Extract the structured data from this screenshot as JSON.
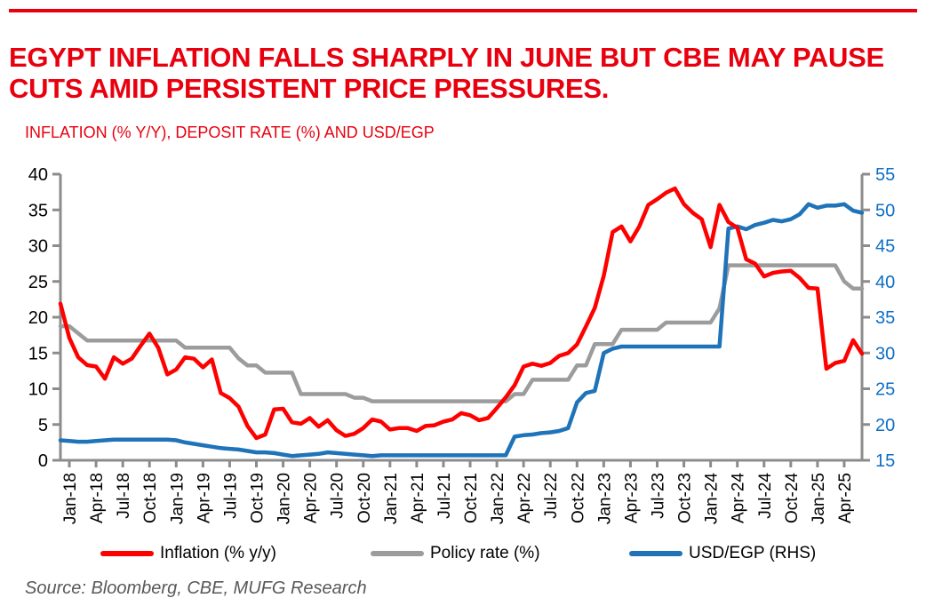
{
  "header": {
    "title_lines": [
      "EGYPT INFLATION FALLS SHARPLY IN JUNE BUT CBE MAY PAUSE",
      "CUTS AMID PERSISTENT PRICE PRESSURES."
    ],
    "subtitle": "INFLATION (% Y/Y), DEPOSIT RATE (%) AND USD/EGP"
  },
  "source": "Source: Bloomberg, CBE, MUFG Research",
  "colors": {
    "header_red": "#E9000F",
    "inflation_line": "#FE0000",
    "policy_line": "#9C9C9C",
    "usd_line": "#1E73B9",
    "axis": "#8C8C8C",
    "left_axis_labels": "#000000",
    "x_axis_labels": "#000000",
    "right_axis_labels": "#0C6EC5",
    "source_text": "#595959"
  },
  "legend": [
    {
      "key": "inflation",
      "label": "Inflation (% y/y)",
      "color": "#FE0000"
    },
    {
      "key": "policy-rate",
      "label": "Policy rate (%)",
      "color": "#9C9C9C"
    },
    {
      "key": "usd-egp",
      "label": "USD/EGP (RHS)",
      "color": "#1E73B9"
    }
  ],
  "chart_data": {
    "type": "line",
    "title": "EGYPT INFLATION FALLS SHARPLY IN JUNE BUT CBE MAY PAUSE CUTS AMID PERSISTENT PRICE PRESSURES.",
    "subtitle": "INFLATION (% Y/Y), DEPOSIT RATE (%) AND USD/EGP",
    "grid": false,
    "legend_position": "bottom",
    "x": [
      "Dec-17",
      "Jan-18",
      "Feb-18",
      "Mar-18",
      "Apr-18",
      "May-18",
      "Jun-18",
      "Jul-18",
      "Aug-18",
      "Sep-18",
      "Oct-18",
      "Nov-18",
      "Dec-18",
      "Jan-19",
      "Feb-19",
      "Mar-19",
      "Apr-19",
      "May-19",
      "Jun-19",
      "Jul-19",
      "Aug-19",
      "Sep-19",
      "Oct-19",
      "Nov-19",
      "Dec-19",
      "Jan-20",
      "Feb-20",
      "Mar-20",
      "Apr-20",
      "May-20",
      "Jun-20",
      "Jul-20",
      "Aug-20",
      "Sep-20",
      "Oct-20",
      "Nov-20",
      "Dec-20",
      "Jan-21",
      "Feb-21",
      "Mar-21",
      "Apr-21",
      "May-21",
      "Jun-21",
      "Jul-21",
      "Aug-21",
      "Sep-21",
      "Oct-21",
      "Nov-21",
      "Dec-21",
      "Jan-22",
      "Feb-22",
      "Mar-22",
      "Apr-22",
      "May-22",
      "Jun-22",
      "Jul-22",
      "Aug-22",
      "Sep-22",
      "Oct-22",
      "Nov-22",
      "Dec-22",
      "Jan-23",
      "Feb-23",
      "Mar-23",
      "Apr-23",
      "May-23",
      "Jun-23",
      "Jul-23",
      "Aug-23",
      "Sep-23",
      "Oct-23",
      "Nov-23",
      "Dec-23",
      "Jan-24",
      "Feb-24",
      "Mar-24",
      "Apr-24",
      "May-24",
      "Jun-24",
      "Jul-24",
      "Aug-24",
      "Sep-24",
      "Oct-24",
      "Nov-24",
      "Dec-24",
      "Jan-25",
      "Feb-25",
      "Mar-25",
      "Apr-25",
      "May-25",
      "Jun-25"
    ],
    "x_tick_labels": [
      "Jan-18",
      "Apr-18",
      "Jul-18",
      "Oct-18",
      "Jan-19",
      "Apr-19",
      "Jul-19",
      "Oct-19",
      "Jan-20",
      "Apr-20",
      "Jul-20",
      "Oct-20",
      "Jan-21",
      "Apr-21",
      "Jul-21",
      "Oct-21",
      "Jan-22",
      "Apr-22",
      "Jul-22",
      "Oct-22",
      "Jan-23",
      "Apr-23",
      "Jul-23",
      "Oct-23",
      "Jan-24",
      "Apr-24",
      "Jul-24",
      "Oct-24",
      "Jan-25",
      "Apr-25"
    ],
    "left_axis": {
      "min": 0,
      "max": 40,
      "step": 5,
      "ticks": [
        0,
        5,
        10,
        15,
        20,
        25,
        30,
        35,
        40
      ]
    },
    "right_axis": {
      "min": 15,
      "max": 55,
      "step": 5,
      "ticks": [
        15,
        20,
        25,
        30,
        35,
        40,
        45,
        50,
        55
      ]
    },
    "series": [
      {
        "key": "inflation",
        "name": "Inflation (% y/y)",
        "axis": "left",
        "color": "#FE0000",
        "values": [
          21.9,
          17.1,
          14.4,
          13.3,
          13.1,
          11.4,
          14.4,
          13.5,
          14.2,
          16.0,
          17.7,
          15.7,
          12.0,
          12.7,
          14.4,
          14.2,
          13.0,
          14.1,
          9.4,
          8.7,
          7.5,
          4.8,
          3.1,
          3.6,
          7.1,
          7.2,
          5.3,
          5.1,
          5.9,
          4.7,
          5.6,
          4.2,
          3.4,
          3.7,
          4.5,
          5.7,
          5.4,
          4.3,
          4.5,
          4.5,
          4.1,
          4.8,
          4.9,
          5.4,
          5.7,
          6.6,
          6.3,
          5.6,
          5.9,
          7.3,
          8.8,
          10.5,
          13.1,
          13.5,
          13.2,
          13.6,
          14.6,
          15.0,
          16.2,
          18.7,
          21.3,
          25.8,
          31.9,
          32.7,
          30.6,
          32.7,
          35.7,
          36.5,
          37.4,
          38.0,
          35.8,
          34.6,
          33.7,
          29.8,
          35.7,
          33.3,
          32.5,
          28.1,
          27.5,
          25.7,
          26.2,
          26.4,
          26.5,
          25.5,
          24.1,
          24.0,
          12.8,
          13.6,
          13.9,
          16.8,
          14.9
        ]
      },
      {
        "key": "policy-rate",
        "name": "Policy rate (%)",
        "axis": "left",
        "color": "#9C9C9C",
        "values": [
          18.75,
          18.75,
          17.75,
          16.75,
          16.75,
          16.75,
          16.75,
          16.75,
          16.75,
          16.75,
          16.75,
          16.75,
          16.75,
          16.75,
          15.75,
          15.75,
          15.75,
          15.75,
          15.75,
          15.75,
          14.25,
          13.25,
          13.25,
          12.25,
          12.25,
          12.25,
          12.25,
          9.25,
          9.25,
          9.25,
          9.25,
          9.25,
          9.25,
          8.75,
          8.75,
          8.25,
          8.25,
          8.25,
          8.25,
          8.25,
          8.25,
          8.25,
          8.25,
          8.25,
          8.25,
          8.25,
          8.25,
          8.25,
          8.25,
          8.25,
          8.25,
          9.25,
          9.25,
          11.25,
          11.25,
          11.25,
          11.25,
          11.25,
          13.25,
          13.25,
          16.25,
          16.25,
          16.25,
          18.25,
          18.25,
          18.25,
          18.25,
          18.25,
          19.25,
          19.25,
          19.25,
          19.25,
          19.25,
          19.25,
          21.25,
          27.25,
          27.25,
          27.25,
          27.25,
          27.25,
          27.25,
          27.25,
          27.25,
          27.25,
          27.25,
          27.25,
          27.25,
          27.25,
          25.0,
          24.0,
          24.0
        ]
      },
      {
        "key": "usd-egp",
        "name": "USD/EGP (RHS)",
        "axis": "right",
        "color": "#1E73B9",
        "values": [
          17.8,
          17.7,
          17.6,
          17.6,
          17.7,
          17.8,
          17.9,
          17.9,
          17.9,
          17.9,
          17.9,
          17.9,
          17.9,
          17.8,
          17.5,
          17.3,
          17.1,
          16.9,
          16.7,
          16.6,
          16.5,
          16.3,
          16.1,
          16.1,
          16.0,
          15.8,
          15.6,
          15.7,
          15.8,
          15.9,
          16.1,
          16.0,
          15.9,
          15.8,
          15.7,
          15.6,
          15.7,
          15.7,
          15.7,
          15.7,
          15.7,
          15.7,
          15.7,
          15.7,
          15.7,
          15.7,
          15.7,
          15.7,
          15.7,
          15.7,
          15.7,
          18.3,
          18.5,
          18.6,
          18.8,
          18.9,
          19.1,
          19.5,
          23.1,
          24.4,
          24.7,
          30.0,
          30.6,
          30.9,
          30.9,
          30.9,
          30.9,
          30.9,
          30.9,
          30.9,
          30.9,
          30.9,
          30.9,
          30.9,
          30.9,
          47.4,
          47.7,
          47.3,
          47.9,
          48.2,
          48.6,
          48.4,
          48.7,
          49.4,
          50.8,
          50.3,
          50.6,
          50.6,
          50.8,
          49.9,
          49.6
        ]
      }
    ]
  }
}
